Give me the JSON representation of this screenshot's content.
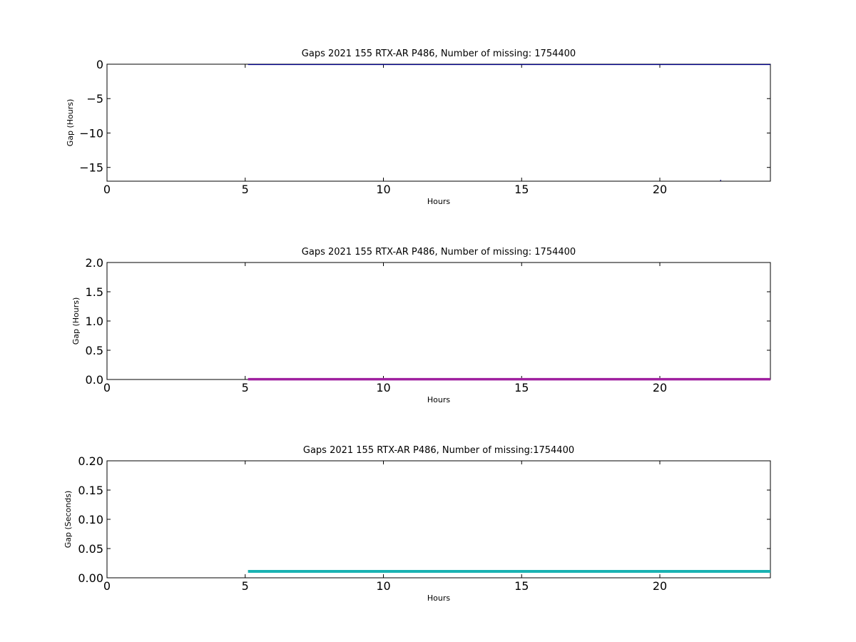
{
  "chart_data": [
    {
      "type": "line",
      "title": "Gaps 2021 155 RTX-AR  P486, Number of missing: 1754400",
      "xlabel": "Hours",
      "ylabel": "Gap (Hours)",
      "xlim": [
        0,
        24
      ],
      "ylim": [
        -17,
        0
      ],
      "xticks": [
        "0",
        "5",
        "10",
        "15",
        "20"
      ],
      "yticks": [
        "0",
        "−5",
        "−10",
        "−15"
      ],
      "grid": false,
      "series": [
        {
          "color": "#00008b",
          "linewidth": 1.2,
          "x": [
            5.1,
            24
          ],
          "y": [
            -0.05,
            -0.05
          ]
        },
        {
          "color": "#00008b",
          "linewidth": 1.2,
          "x": [
            22.2,
            22.2
          ],
          "y": [
            -16.8,
            -16.95
          ]
        }
      ]
    },
    {
      "type": "line",
      "title": "Gaps 2021 155 RTX-AR  P486, Number of missing: 1754400",
      "xlabel": "Hours",
      "ylabel": "Gap (Hours)",
      "xlim": [
        0,
        24
      ],
      "ylim": [
        0,
        2
      ],
      "xticks": [
        "0",
        "5",
        "10",
        "15",
        "20"
      ],
      "yticks": [
        "0.0",
        "0.5",
        "1.0",
        "1.5",
        "2.0"
      ],
      "grid": false,
      "series": [
        {
          "color": "#a020a0",
          "linewidth": 3.5,
          "x": [
            5.1,
            24
          ],
          "y": [
            0.005,
            0.005
          ]
        }
      ]
    },
    {
      "type": "line",
      "title": "Gaps 2021 155 RTX-AR  P486, Number of missing:1754400",
      "xlabel": "Hours",
      "ylabel": "Gap (Seconds)",
      "xlim": [
        0,
        24
      ],
      "ylim": [
        0,
        0.2
      ],
      "xticks": [
        "0",
        "5",
        "10",
        "15",
        "20"
      ],
      "yticks": [
        "0.00",
        "0.05",
        "0.10",
        "0.15",
        "0.20"
      ],
      "grid": false,
      "series": [
        {
          "color": "#1ab2b2",
          "linewidth": 4,
          "x": [
            5.1,
            24
          ],
          "y": [
            0.011,
            0.011
          ]
        }
      ]
    }
  ]
}
